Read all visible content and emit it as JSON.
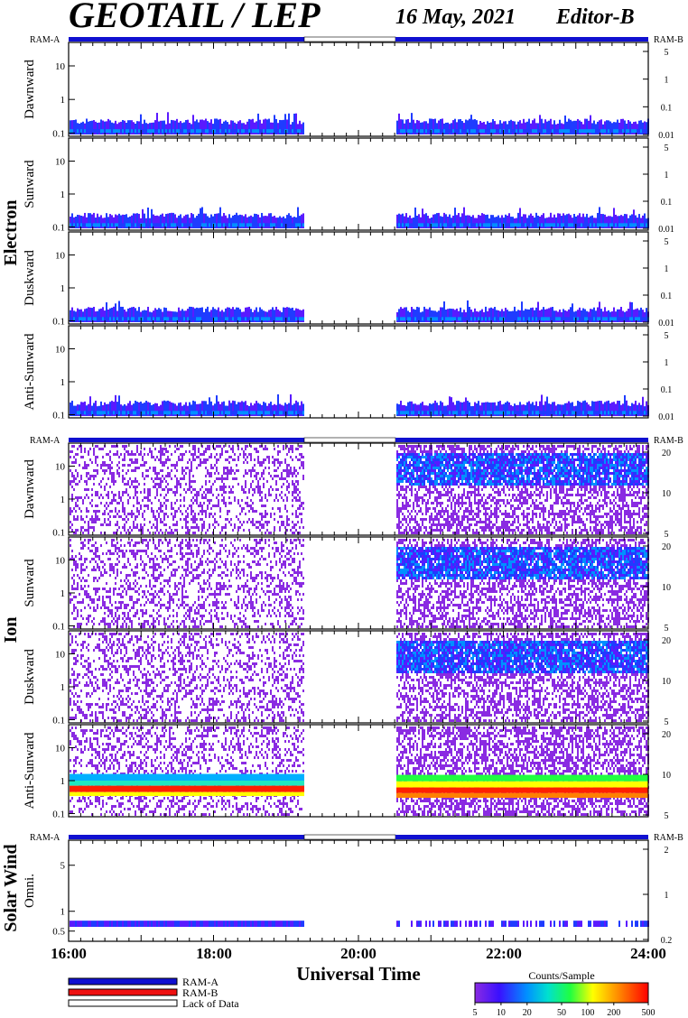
{
  "header": {
    "title": "GEOTAIL / LEP",
    "date": "16 May, 2021",
    "editor": "Editor-B"
  },
  "colors": {
    "ram_a": "#1010d0",
    "ram_b": "#ee1010",
    "lack_of_data": "#ffffff"
  },
  "chart_data": [
    {
      "type": "heatmap",
      "section": "Electron",
      "bar_left_label": "RAM-A",
      "bar_right_label": "RAM-B",
      "x": {
        "label": "Universal Time",
        "range": [
          "16:00",
          "24:00"
        ]
      },
      "data_gaps": [
        [
          "19:15",
          "20:30"
        ]
      ],
      "panels": [
        {
          "name": "Dawnward",
          "left_ticks": [
            "10",
            "1",
            "0.1"
          ],
          "right_ticks": [
            "5",
            "1",
            "0.1",
            "0.01"
          ]
        },
        {
          "name": "Sunward",
          "left_ticks": [
            "10",
            "1",
            "0.1"
          ],
          "right_ticks": [
            "5",
            "1",
            "0.1",
            "0.01"
          ]
        },
        {
          "name": "Duskward",
          "left_ticks": [
            "10",
            "1",
            "0.1"
          ],
          "right_ticks": [
            "5",
            "1",
            "0.1",
            "0.01"
          ]
        },
        {
          "name": "Anti-Sunward",
          "left_ticks": [
            "10",
            "1",
            "0.1"
          ],
          "right_ticks": [
            "5",
            "1",
            "0.1",
            "0.01"
          ]
        }
      ]
    },
    {
      "type": "heatmap",
      "section": "Ion",
      "bar_left_label": "RAM-A",
      "bar_right_label": "RAM-B",
      "x": {
        "label": "Universal Time",
        "range": [
          "16:00",
          "24:00"
        ]
      },
      "data_gaps": [
        [
          "19:15",
          "20:30"
        ]
      ],
      "panels": [
        {
          "name": "Dawnward",
          "left_ticks": [
            "10",
            "1",
            "0.1"
          ],
          "right_ticks": [
            "20",
            "10",
            "5"
          ]
        },
        {
          "name": "Sunward",
          "left_ticks": [
            "10",
            "1",
            "0.1"
          ],
          "right_ticks": [
            "20",
            "10",
            "5"
          ]
        },
        {
          "name": "Duskward",
          "left_ticks": [
            "10",
            "1",
            "0.1"
          ],
          "right_ticks": [
            "20",
            "10",
            "5"
          ]
        },
        {
          "name": "Anti-Sunward",
          "left_ticks": [
            "10",
            "1",
            "0.1"
          ],
          "right_ticks": [
            "20",
            "10",
            "5"
          ]
        }
      ]
    },
    {
      "type": "heatmap",
      "section": "Solar Wind",
      "bar_left_label": "RAM-A",
      "bar_right_label": "RAM-B",
      "x": {
        "label": "Universal Time",
        "range": [
          "16:00",
          "24:00"
        ]
      },
      "data_gaps": [
        [
          "19:15",
          "20:30"
        ]
      ],
      "panels": [
        {
          "name": "Omni.",
          "left_ticks": [
            "5",
            "1",
            "0.5"
          ],
          "right_ticks": [
            "2",
            "1",
            "0.2"
          ]
        }
      ]
    }
  ],
  "x_axis": {
    "label": "Universal Time",
    "ticks": [
      "16:00",
      "18:00",
      "20:00",
      "22:00",
      "24:00"
    ]
  },
  "legend": {
    "items": [
      {
        "label": "RAM-A",
        "color": "#1010d0"
      },
      {
        "label": "RAM-B",
        "color": "#ee1010"
      },
      {
        "label": "Lack of Data",
        "color": "#ffffff"
      }
    ]
  },
  "colorbar": {
    "title": "Counts/Sample",
    "ticks": [
      "5",
      "10",
      "20",
      "50",
      "100",
      "200",
      "500"
    ],
    "scale": "log"
  }
}
